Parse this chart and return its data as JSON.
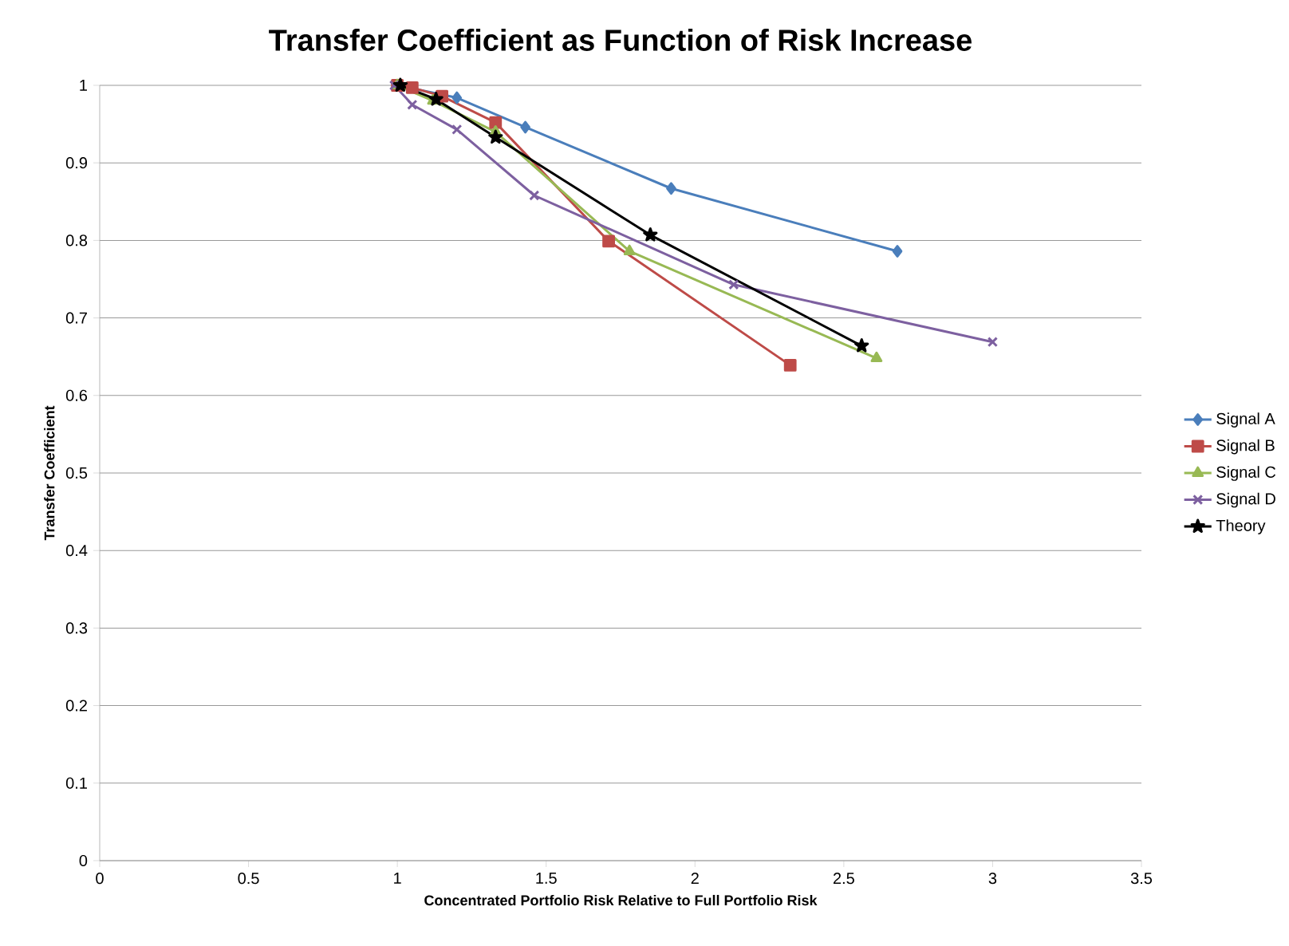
{
  "chart_data": {
    "type": "line",
    "title": "Transfer Coefficient as Function of Risk Increase",
    "xlabel": "Concentrated Portfolio Risk Relative to Full Portfolio Risk",
    "ylabel": "Transfer Coefficient",
    "series": [
      {
        "name": "Signal A",
        "color": "#4a7ebb",
        "marker": "diamond",
        "x": [
          1.0,
          1.2,
          1.43,
          1.92,
          2.68
        ],
        "values": [
          1.0,
          0.984,
          0.946,
          0.867,
          0.786
        ]
      },
      {
        "name": "Signal B",
        "color": "#be4b48",
        "marker": "square",
        "x": [
          1.0,
          1.05,
          1.15,
          1.33,
          1.71,
          2.32
        ],
        "values": [
          1.0,
          0.997,
          0.986,
          0.952,
          0.799,
          0.639
        ]
      },
      {
        "name": "Signal C",
        "color": "#98b954",
        "marker": "triangle",
        "x": [
          1.0,
          1.12,
          1.33,
          1.78,
          2.61
        ],
        "values": [
          1.0,
          0.98,
          0.94,
          0.786,
          0.648
        ]
      },
      {
        "name": "Signal D",
        "color": "#7d60a0",
        "marker": "cross",
        "x": [
          0.99,
          1.05,
          1.2,
          1.46,
          2.13,
          3.0
        ],
        "values": [
          1.0,
          0.975,
          0.943,
          0.858,
          0.743,
          0.669
        ]
      },
      {
        "name": "Theory",
        "color": "#000000",
        "marker": "star",
        "x": [
          1.01,
          1.13,
          1.33,
          1.85,
          2.56
        ],
        "values": [
          1.0,
          0.982,
          0.933,
          0.807,
          0.664
        ]
      }
    ],
    "xlim": [
      0,
      3.5
    ],
    "xticks": [
      0,
      0.5,
      1,
      1.5,
      2,
      2.5,
      3,
      3.5
    ],
    "ylim": [
      0,
      1
    ],
    "yticks": [
      0,
      0.1,
      0.2,
      0.3,
      0.4,
      0.5,
      0.6,
      0.7,
      0.8,
      0.9,
      1
    ],
    "grid": "y",
    "legend": "right",
    "line_style": "solid"
  }
}
